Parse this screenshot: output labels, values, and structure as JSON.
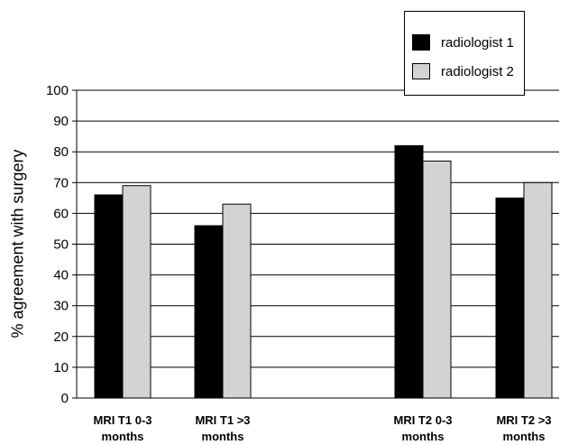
{
  "chart_data": {
    "type": "bar",
    "categories": [
      [
        "MRI T1 0-3",
        "months"
      ],
      [
        "MRI T1 >3",
        "months"
      ],
      [
        "MRI T2 0-3",
        "months"
      ],
      [
        "MRI T2 >3",
        "months"
      ]
    ],
    "series": [
      {
        "name": "radiologist 1",
        "color": "#000000",
        "values": [
          66,
          56,
          82,
          65
        ]
      },
      {
        "name": "radiologist 2",
        "color": "#d3d3d3",
        "values": [
          69,
          63,
          77,
          70
        ]
      }
    ],
    "ylabel": "% agreement with surgery",
    "ylim": [
      0,
      100
    ],
    "yticks": [
      0,
      10,
      20,
      30,
      40,
      50,
      60,
      70,
      80,
      90,
      100
    ],
    "grid": true,
    "legend_position": "top-right"
  }
}
